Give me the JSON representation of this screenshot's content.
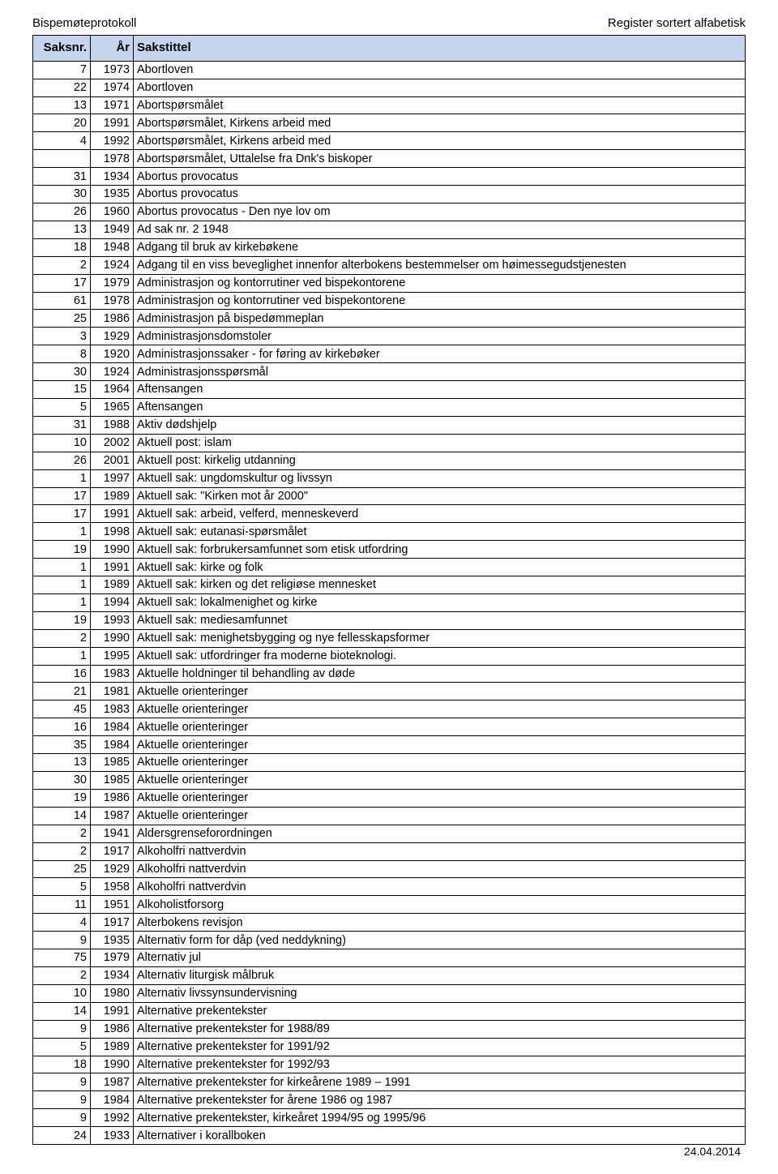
{
  "header": {
    "left": "Bispemøteprotokoll",
    "right": "Register sortert alfabetisk"
  },
  "columns": {
    "saksnr": "Saksnr.",
    "ar": "År",
    "sakstittel": "Sakstittel"
  },
  "footer_date": "24.04.2014",
  "rows": [
    {
      "n": "7",
      "y": "1973",
      "t": "Abortloven"
    },
    {
      "n": "22",
      "y": "1974",
      "t": "Abortloven"
    },
    {
      "n": "13",
      "y": "1971",
      "t": "Abortspørsmålet"
    },
    {
      "n": "20",
      "y": "1991",
      "t": "Abortspørsmålet, Kirkens arbeid med"
    },
    {
      "n": "4",
      "y": "1992",
      "t": "Abortspørsmålet, Kirkens arbeid med"
    },
    {
      "n": "",
      "y": "1978",
      "t": "Abortspørsmålet, Uttalelse fra Dnk's biskoper"
    },
    {
      "n": "31",
      "y": "1934",
      "t": "Abortus provocatus"
    },
    {
      "n": "30",
      "y": "1935",
      "t": "Abortus provocatus"
    },
    {
      "n": "26",
      "y": "1960",
      "t": "Abortus provocatus - Den nye lov om"
    },
    {
      "n": "13",
      "y": "1949",
      "t": "Ad sak nr. 2 1948"
    },
    {
      "n": "18",
      "y": "1948",
      "t": "Adgang til bruk av kirkebøkene"
    },
    {
      "n": "2",
      "y": "1924",
      "t": "Adgang til en viss beveglighet innenfor alterbokens bestemmelser om høimessegudstjenesten"
    },
    {
      "n": "17",
      "y": "1979",
      "t": "Administrasjon og kontorrutiner ved bispekontorene"
    },
    {
      "n": "61",
      "y": "1978",
      "t": "Administrasjon og kontorrutiner ved bispekontorene"
    },
    {
      "n": "25",
      "y": "1986",
      "t": "Administrasjon på bispedømmeplan"
    },
    {
      "n": "3",
      "y": "1929",
      "t": "Administrasjonsdomstoler"
    },
    {
      "n": "8",
      "y": "1920",
      "t": "Administrasjonssaker - for føring av kirkebøker"
    },
    {
      "n": "30",
      "y": "1924",
      "t": "Administrasjonsspørsmål"
    },
    {
      "n": "15",
      "y": "1964",
      "t": "Aftensangen"
    },
    {
      "n": "5",
      "y": "1965",
      "t": "Aftensangen"
    },
    {
      "n": "31",
      "y": "1988",
      "t": "Aktiv dødshjelp"
    },
    {
      "n": "10",
      "y": "2002",
      "t": "Aktuell post: islam"
    },
    {
      "n": "26",
      "y": "2001",
      "t": "Aktuell post: kirkelig utdanning"
    },
    {
      "n": "1",
      "y": "1997",
      "t": "Aktuell sak:  ungdomskultur og livssyn"
    },
    {
      "n": "17",
      "y": "1989",
      "t": "Aktuell sak: \"Kirken mot år 2000\""
    },
    {
      "n": "17",
      "y": "1991",
      "t": "Aktuell sak: arbeid, velferd, menneskeverd"
    },
    {
      "n": "1",
      "y": "1998",
      "t": "Aktuell sak: eutanasi-spørsmålet"
    },
    {
      "n": "19",
      "y": "1990",
      "t": "Aktuell sak: forbrukersamfunnet som etisk utfordring"
    },
    {
      "n": "1",
      "y": "1991",
      "t": "Aktuell sak: kirke og folk"
    },
    {
      "n": "1",
      "y": "1989",
      "t": "Aktuell sak: kirken og det religiøse mennesket"
    },
    {
      "n": "1",
      "y": "1994",
      "t": "Aktuell sak: lokalmenighet og kirke"
    },
    {
      "n": "19",
      "y": "1993",
      "t": "Aktuell sak: mediesamfunnet"
    },
    {
      "n": "2",
      "y": "1990",
      "t": "Aktuell sak: menighetsbygging og nye fellesskapsformer"
    },
    {
      "n": "1",
      "y": "1995",
      "t": "Aktuell sak: utfordringer fra moderne bioteknologi."
    },
    {
      "n": "16",
      "y": "1983",
      "t": "Aktuelle holdninger til behandling av døde"
    },
    {
      "n": "21",
      "y": "1981",
      "t": "Aktuelle orienteringer"
    },
    {
      "n": "45",
      "y": "1983",
      "t": "Aktuelle orienteringer"
    },
    {
      "n": "16",
      "y": "1984",
      "t": "Aktuelle orienteringer"
    },
    {
      "n": "35",
      "y": "1984",
      "t": "Aktuelle orienteringer"
    },
    {
      "n": "13",
      "y": "1985",
      "t": "Aktuelle orienteringer"
    },
    {
      "n": "30",
      "y": "1985",
      "t": "Aktuelle orienteringer"
    },
    {
      "n": "19",
      "y": "1986",
      "t": "Aktuelle orienteringer"
    },
    {
      "n": "14",
      "y": "1987",
      "t": "Aktuelle orienteringer"
    },
    {
      "n": "2",
      "y": "1941",
      "t": "Aldersgrenseforordningen"
    },
    {
      "n": "2",
      "y": "1917",
      "t": "Alkoholfri nattverdvin"
    },
    {
      "n": "25",
      "y": "1929",
      "t": "Alkoholfri nattverdvin"
    },
    {
      "n": "5",
      "y": "1958",
      "t": "Alkoholfri nattverdvin"
    },
    {
      "n": "11",
      "y": "1951",
      "t": "Alkoholistforsorg"
    },
    {
      "n": "4",
      "y": "1917",
      "t": "Alterbokens revisjon"
    },
    {
      "n": "9",
      "y": "1935",
      "t": "Alternativ form for dåp (ved neddykning)"
    },
    {
      "n": "75",
      "y": "1979",
      "t": "Alternativ jul"
    },
    {
      "n": "2",
      "y": "1934",
      "t": "Alternativ liturgisk målbruk"
    },
    {
      "n": "10",
      "y": "1980",
      "t": "Alternativ livssynsundervisning"
    },
    {
      "n": "14",
      "y": "1991",
      "t": "Alternative prekentekster"
    },
    {
      "n": "9",
      "y": "1986",
      "t": "Alternative prekentekster for 1988/89"
    },
    {
      "n": "5",
      "y": "1989",
      "t": "Alternative prekentekster for 1991/92"
    },
    {
      "n": "18",
      "y": "1990",
      "t": "Alternative prekentekster for 1992/93"
    },
    {
      "n": "9",
      "y": "1987",
      "t": "Alternative prekentekster for kirkeårene 1989 – 1991"
    },
    {
      "n": "9",
      "y": "1984",
      "t": "Alternative prekentekster for årene 1986 og 1987"
    },
    {
      "n": "9",
      "y": "1992",
      "t": "Alternative prekentekster, kirkeåret 1994/95 og 1995/96"
    },
    {
      "n": "24",
      "y": "1933",
      "t": "Alternativer i korallboken"
    }
  ]
}
